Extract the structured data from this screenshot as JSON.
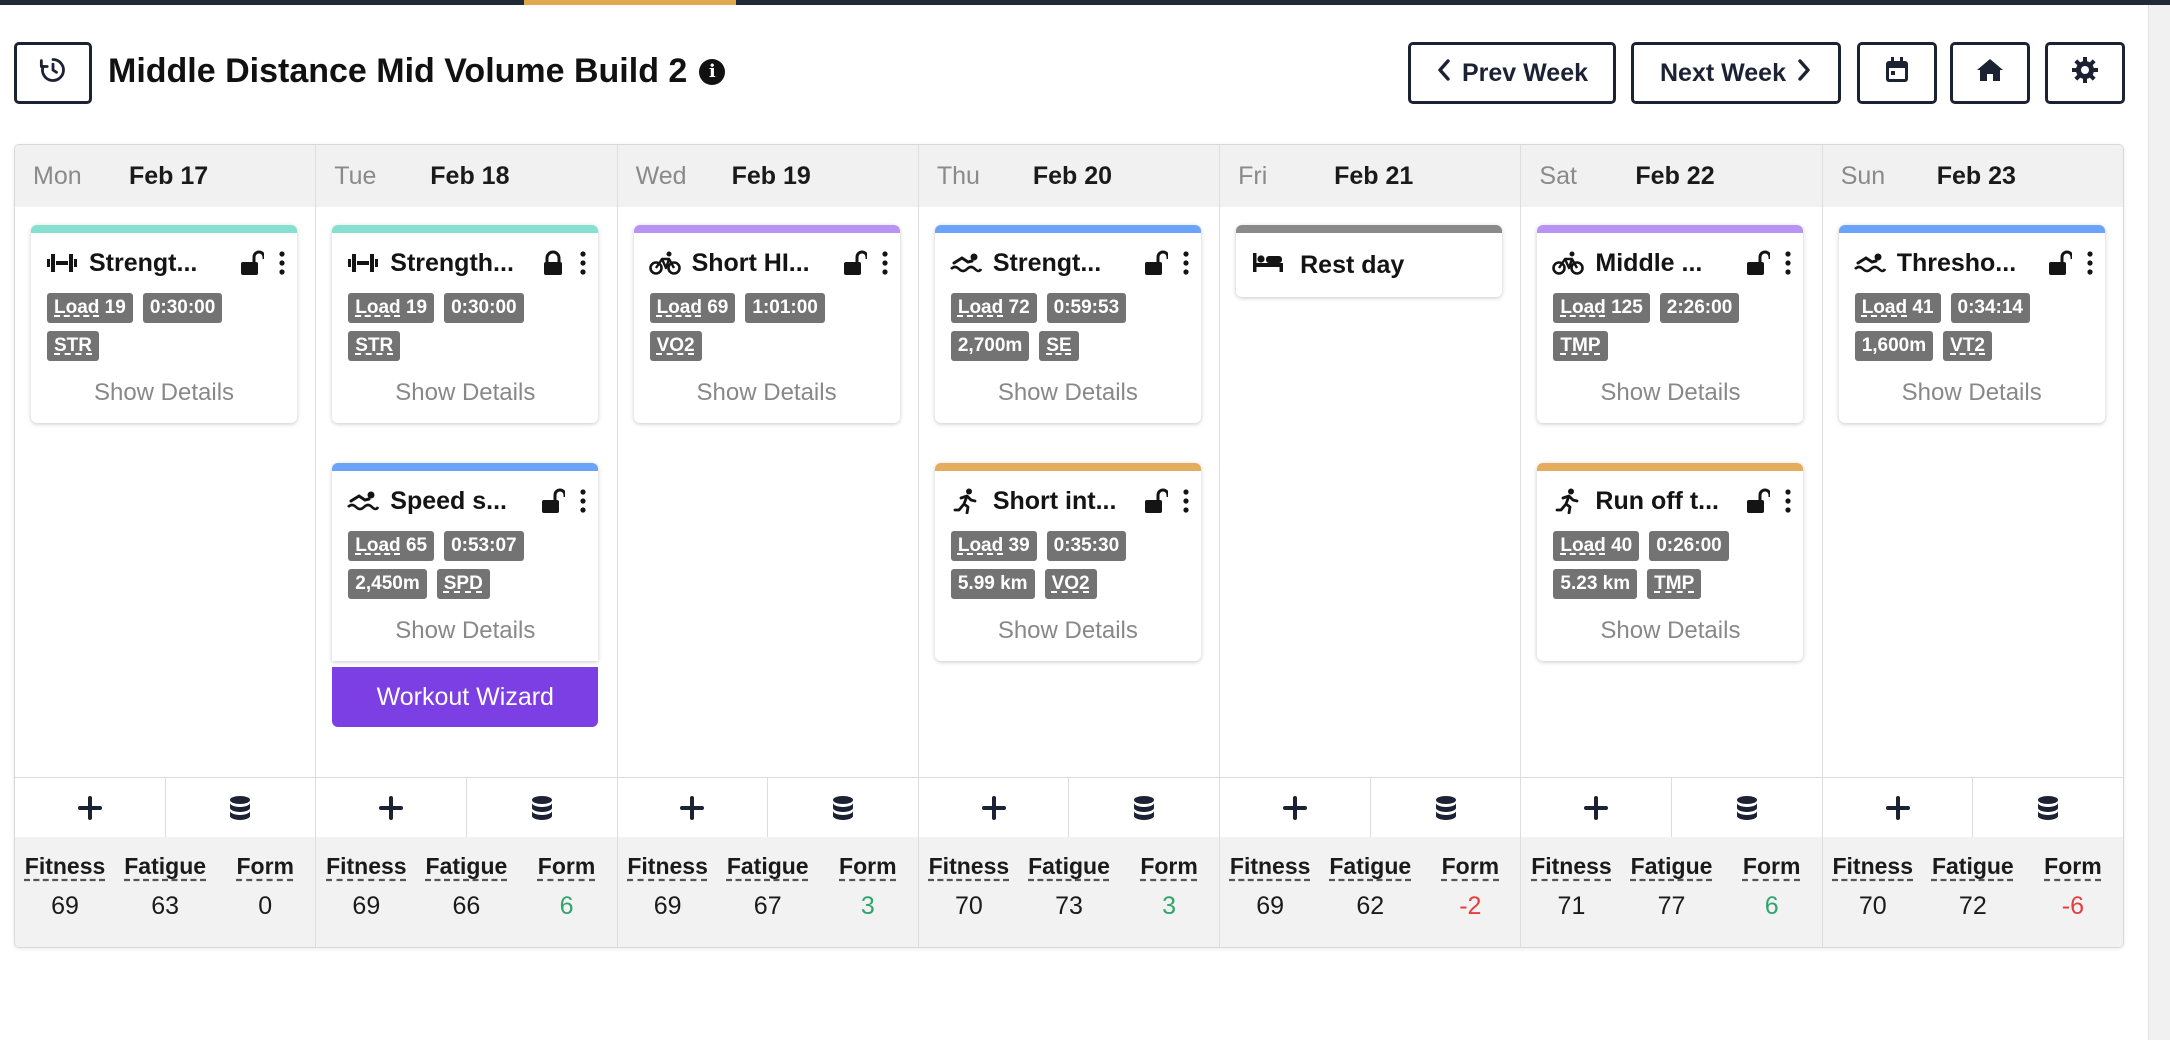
{
  "header": {
    "title": "Middle Distance Mid Volume Build 2",
    "info": "i",
    "prev_week": "Prev Week",
    "next_week": "Next Week"
  },
  "colors": {
    "strength": "#86e0d0",
    "bike": "#b794f4",
    "swim": "#6aa3f7",
    "run": "#e3ad5d",
    "rest": "#8a8a8a",
    "wizard": "#7b3fe4",
    "positive": "#2fa56d",
    "negative": "#e53e3e"
  },
  "labels": {
    "show_details": "Show Details",
    "workout_wizard": "Workout Wizard",
    "fitness": "Fitness",
    "fatigue": "Fatigue",
    "form": "Form",
    "rest_day": "Rest day"
  },
  "days": [
    {
      "name": "Mon",
      "date": "Feb 17",
      "fitness": "69",
      "fatigue": "63",
      "form": "0",
      "form_sign": "zero",
      "workouts": [
        {
          "sport": "strength",
          "title": "Strengt...",
          "locked": false,
          "load": "Load 19",
          "duration": "0:30:00",
          "distance": "",
          "zone": "STR"
        }
      ]
    },
    {
      "name": "Tue",
      "date": "Feb 18",
      "fitness": "69",
      "fatigue": "66",
      "form": "6",
      "form_sign": "positive",
      "workouts": [
        {
          "sport": "strength",
          "title": "Strength...",
          "locked": true,
          "load": "Load 19",
          "duration": "0:30:00",
          "distance": "",
          "zone": "STR"
        },
        {
          "sport": "swim",
          "title": "Speed s...",
          "locked": false,
          "load": "Load 65",
          "duration": "0:53:07",
          "distance": "2,450m",
          "zone": "SPD"
        }
      ]
    },
    {
      "name": "Wed",
      "date": "Feb 19",
      "fitness": "69",
      "fatigue": "67",
      "form": "3",
      "form_sign": "positive",
      "workouts": [
        {
          "sport": "bike",
          "title": "Short HI...",
          "locked": false,
          "load": "Load 69",
          "duration": "1:01:00",
          "distance": "",
          "zone": "VO2"
        }
      ]
    },
    {
      "name": "Thu",
      "date": "Feb 20",
      "fitness": "70",
      "fatigue": "73",
      "form": "3",
      "form_sign": "positive",
      "workouts": [
        {
          "sport": "swim",
          "title": "Strengt...",
          "locked": false,
          "load": "Load 72",
          "duration": "0:59:53",
          "distance": "2,700m",
          "zone": "SE"
        },
        {
          "sport": "run",
          "title": "Short int...",
          "locked": false,
          "load": "Load 39",
          "duration": "0:35:30",
          "distance": "5.99 km",
          "zone": "VO2"
        }
      ]
    },
    {
      "name": "Fri",
      "date": "Feb 21",
      "fitness": "69",
      "fatigue": "62",
      "form": "-2",
      "form_sign": "negative",
      "workouts": []
    },
    {
      "name": "Sat",
      "date": "Feb 22",
      "fitness": "71",
      "fatigue": "77",
      "form": "6",
      "form_sign": "positive",
      "workouts": [
        {
          "sport": "bike",
          "title": "Middle ...",
          "locked": false,
          "load": "Load 125",
          "duration": "2:26:00",
          "distance": "",
          "zone": "TMP"
        },
        {
          "sport": "run",
          "title": "Run off t...",
          "locked": false,
          "load": "Load 40",
          "duration": "0:26:00",
          "distance": "5.23 km",
          "zone": "TMP"
        }
      ]
    },
    {
      "name": "Sun",
      "date": "Feb 23",
      "fitness": "70",
      "fatigue": "72",
      "form": "-6",
      "form_sign": "negative",
      "workouts": [
        {
          "sport": "swim",
          "title": "Thresho...",
          "locked": false,
          "load": "Load 41",
          "duration": "0:34:14",
          "distance": "1,600m",
          "zone": "VT2"
        }
      ]
    }
  ]
}
